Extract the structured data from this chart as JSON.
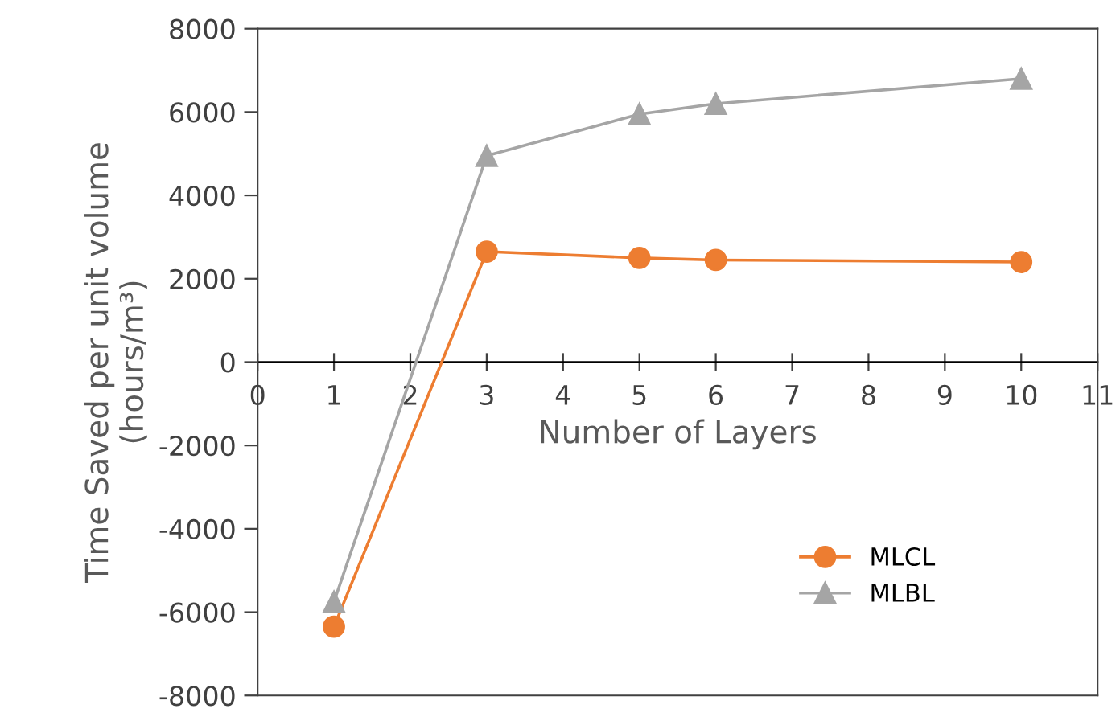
{
  "chart_data": {
    "type": "line",
    "xlabel": "Number of Layers",
    "ylabel": "Time Saved per unit volume\n(hours/m³)",
    "x": [
      1,
      3,
      5,
      6,
      10
    ],
    "series": [
      {
        "name": "MLCL",
        "color": "#ed7d31",
        "marker": "circle",
        "values": [
          -6350,
          2650,
          2500,
          2450,
          2400
        ]
      },
      {
        "name": "MLBL",
        "color": "#a5a5a5",
        "marker": "triangle",
        "values": [
          -5750,
          4950,
          5950,
          6200,
          6800
        ]
      }
    ],
    "xlim": [
      0,
      11
    ],
    "xticks": [
      0,
      1,
      2,
      3,
      4,
      5,
      6,
      7,
      8,
      9,
      10,
      11
    ],
    "ylim": [
      -8000,
      8000
    ],
    "yticks": [
      -8000,
      -6000,
      -4000,
      -2000,
      0,
      2000,
      4000,
      6000,
      8000
    ],
    "grid": false,
    "legend": "bottom right"
  }
}
